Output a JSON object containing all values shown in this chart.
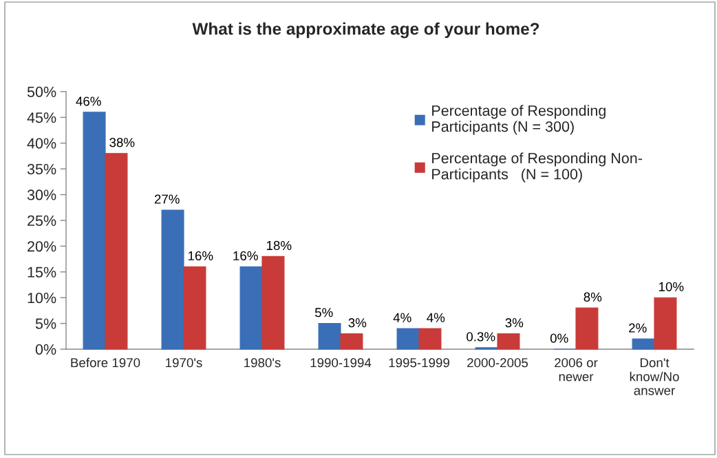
{
  "chart_data": {
    "type": "bar",
    "title": "What is the approximate age of your home?",
    "categories": [
      "Before 1970",
      "1970's",
      "1980's",
      "1990-1994",
      "1995-1999",
      "2000-2005",
      "2006 or newer",
      "Don't know/No answer"
    ],
    "series": [
      {
        "name": "Percentage of Responding Participants (N = 300)",
        "color": "#3a6fb7",
        "values": [
          46,
          27,
          16,
          5,
          4,
          0.3,
          0,
          2
        ],
        "value_labels": [
          "46%",
          "27%",
          "16%",
          "5%",
          "4%",
          "0.3%",
          "0%",
          "2%"
        ]
      },
      {
        "name": "Percentage of Responding Non-Participants   (N = 100)",
        "color": "#c83b38",
        "values": [
          38,
          16,
          18,
          3,
          4,
          3,
          8,
          10
        ],
        "value_labels": [
          "38%",
          "16%",
          "18%",
          "3%",
          "4%",
          "3%",
          "8%",
          "10%"
        ]
      }
    ],
    "ylim": [
      0,
      50
    ],
    "yticks": [
      {
        "value": 0,
        "label": "0%"
      },
      {
        "value": 5,
        "label": "5%"
      },
      {
        "value": 10,
        "label": "10%"
      },
      {
        "value": 15,
        "label": "15%"
      },
      {
        "value": 20,
        "label": "20%"
      },
      {
        "value": 25,
        "label": "25%"
      },
      {
        "value": 30,
        "label": "30%"
      },
      {
        "value": 35,
        "label": "35%"
      },
      {
        "value": 40,
        "label": "40%"
      },
      {
        "value": 45,
        "label": "45%"
      },
      {
        "value": 50,
        "label": "50%"
      }
    ],
    "grid": false,
    "legend": "top right"
  }
}
